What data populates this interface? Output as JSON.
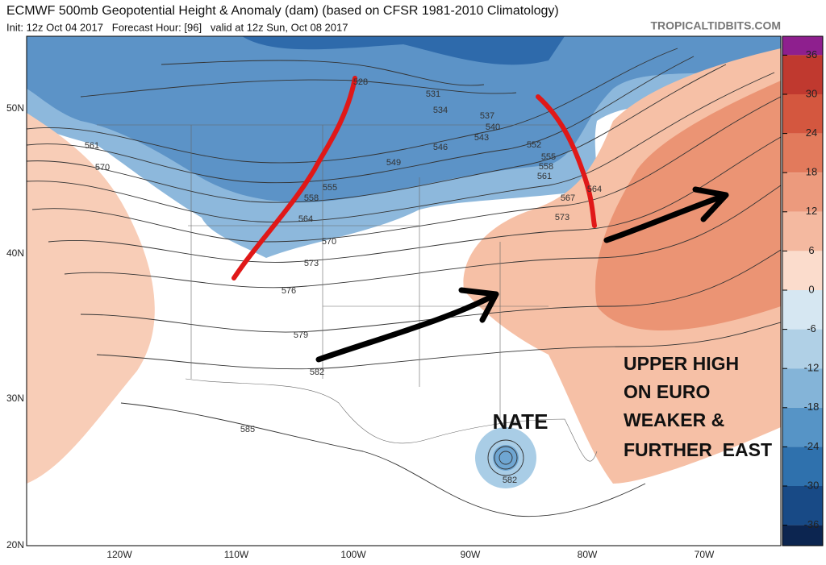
{
  "header": {
    "title": "ECMWF 500mb Geopotential Height & Anomaly (dam) (based on CFSR 1981-2010 Climatology)",
    "subtitle": "Init: 12z Oct 04 2017   Forecast Hour: [96]   valid at 12z Sun, Oct 08 2017",
    "credit": "TROPICALTIDBITS.COM"
  },
  "colorbar": {
    "ticks": [
      36,
      30,
      24,
      18,
      12,
      6,
      0,
      -6,
      -12,
      -18,
      -24,
      -30,
      -36
    ],
    "over_color": "#8e1f8e",
    "under_color": "#0c2550",
    "band_colors": [
      "#c0392f",
      "#d4573f",
      "#e27a5c",
      "#ec9a7d",
      "#f4b9a0",
      "#fbdccc",
      "#d6e7f2",
      "#b0d0e6",
      "#84b4d8",
      "#5694c6",
      "#2f71ad",
      "#184a86"
    ]
  },
  "map": {
    "lat_labels": [
      "50N",
      "40N",
      "30N",
      "20N"
    ],
    "lon_labels": [
      "120W",
      "110W",
      "100W",
      "90W",
      "80W",
      "70W"
    ],
    "contour_labels": [
      "528",
      "531",
      "534",
      "537",
      "540",
      "543",
      "546",
      "549",
      "552",
      "555",
      "558",
      "561",
      "564",
      "567",
      "573",
      "561",
      "570",
      "555",
      "558",
      "564",
      "570",
      "573",
      "576",
      "579",
      "582",
      "585",
      "582"
    ]
  },
  "annotations": {
    "storm": "NATE",
    "note_lines": [
      "UPPER HIGH",
      "ON EURO",
      "WEAKER &",
      "FURTHER  EAST"
    ]
  }
}
